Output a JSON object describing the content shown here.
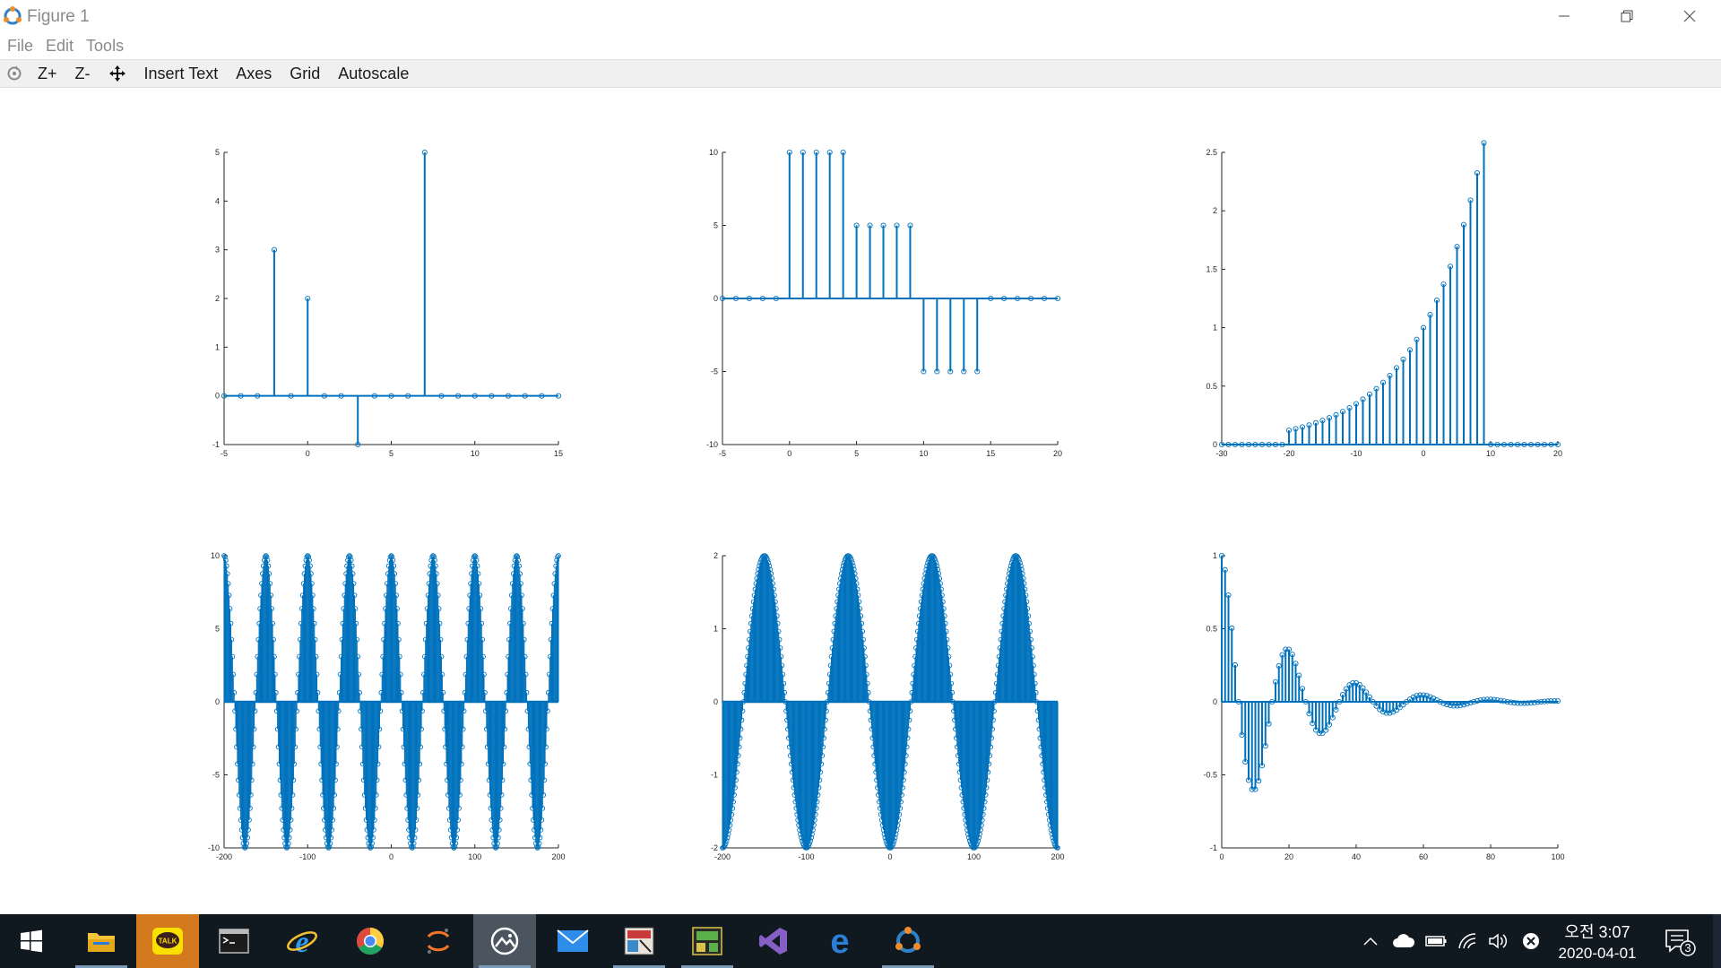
{
  "window": {
    "title": "Figure 1"
  },
  "menu": [
    "File",
    "Edit",
    "Tools"
  ],
  "toolbar": {
    "zoom_in": "Z+",
    "zoom_out": "Z-",
    "insert_text": "Insert Text",
    "axes": "Axes",
    "grid": "Grid",
    "autoscale": "Autoscale"
  },
  "colors": {
    "stem": "#0072bd",
    "axis": "#262626"
  },
  "chart_data": [
    {
      "type": "stem",
      "xlim": [
        -5,
        15
      ],
      "ylim": [
        -1,
        5
      ],
      "xticks": [
        "-5",
        "0",
        "5",
        "10",
        "15"
      ],
      "yticks": [
        "-1",
        "0",
        "1",
        "2",
        "3",
        "4",
        "5"
      ],
      "x": [
        -5,
        -4,
        -3,
        -2,
        -1,
        0,
        1,
        2,
        3,
        4,
        5,
        6,
        7,
        8,
        9,
        10,
        11,
        12,
        13,
        14,
        15
      ],
      "y": [
        0,
        0,
        0,
        3,
        0,
        2,
        0,
        0,
        -1,
        0,
        0,
        0,
        5,
        0,
        0,
        0,
        0,
        0,
        0,
        0,
        0
      ]
    },
    {
      "type": "stem",
      "xlim": [
        -5,
        20
      ],
      "ylim": [
        -10,
        10
      ],
      "xticks": [
        "-5",
        "0",
        "5",
        "10",
        "15",
        "20"
      ],
      "yticks": [
        "-10",
        "-5",
        "0",
        "5",
        "10"
      ],
      "x": [
        -5,
        -4,
        -3,
        -2,
        -1,
        0,
        1,
        2,
        3,
        4,
        5,
        6,
        7,
        8,
        9,
        10,
        11,
        12,
        13,
        14,
        15,
        16,
        17,
        18,
        19,
        20
      ],
      "y": [
        0,
        0,
        0,
        0,
        0,
        10,
        10,
        10,
        10,
        10,
        5,
        5,
        5,
        5,
        5,
        -5,
        -5,
        -5,
        -5,
        -5,
        0,
        0,
        0,
        0,
        0,
        0
      ]
    },
    {
      "type": "stem",
      "xlim": [
        -30,
        20
      ],
      "ylim": [
        0,
        2.5
      ],
      "xticks": [
        "-30",
        "-20",
        "-10",
        "0",
        "10",
        "20"
      ],
      "yticks": [
        "0",
        "0.5",
        "1",
        "1.5",
        "2",
        "2.5"
      ],
      "function": "0.9^(-n) for -20 <= n <= 9, else 0",
      "x_range": [
        -30,
        20
      ]
    },
    {
      "type": "stem",
      "xlim": [
        -200,
        200
      ],
      "ylim": [
        -10,
        10
      ],
      "xticks": [
        "-200",
        "-100",
        "0",
        "100",
        "200"
      ],
      "yticks": [
        "-10",
        "-5",
        "0",
        "5",
        "10"
      ],
      "function": "10*cos(0.04*pi*n)",
      "x_range": [
        -200,
        200
      ]
    },
    {
      "type": "stem",
      "xlim": [
        -200,
        200
      ],
      "ylim": [
        -2,
        2
      ],
      "xticks": [
        "-200",
        "-100",
        "0",
        "100",
        "200"
      ],
      "yticks": [
        "-2",
        "-1",
        "0",
        "1",
        "2"
      ],
      "function": "2*sin(0.01*pi*n*... periodic, period 100)",
      "x_range": [
        -200,
        200
      ]
    },
    {
      "type": "stem",
      "xlim": [
        0,
        100
      ],
      "ylim": [
        -1,
        1
      ],
      "xticks": [
        "0",
        "20",
        "40",
        "60",
        "80",
        "100"
      ],
      "yticks": [
        "-1",
        "-0.5",
        "0",
        "0.5",
        "1"
      ],
      "function": "0.95^n * cos(0.1*pi*n)",
      "x_range": [
        0,
        100
      ]
    }
  ],
  "taskbar": {
    "clock_time": "오전 3:07",
    "clock_date": "2020-04-01",
    "notification_count": "3"
  }
}
